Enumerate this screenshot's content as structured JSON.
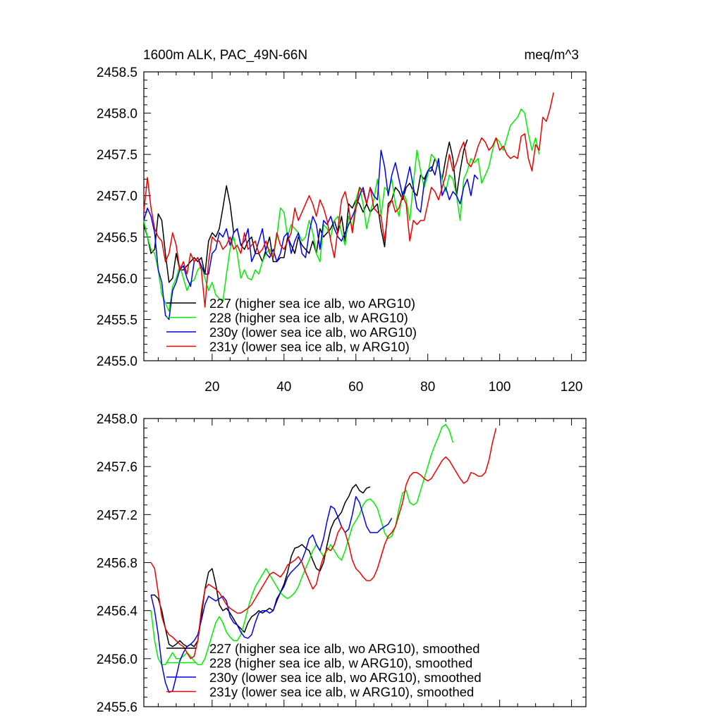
{
  "chart_data": [
    {
      "type": "line",
      "title": "1600m ALK, PAC_49N-66N",
      "units_label": "meq/m^3",
      "xlabel": "",
      "ylabel": "",
      "xlim": [
        1,
        124
      ],
      "ylim": [
        2455.0,
        2458.5
      ],
      "xticks": [
        20,
        40,
        60,
        80,
        100,
        120
      ],
      "xtick_labels": [
        "20",
        "40",
        "60",
        "80",
        "100",
        "120"
      ],
      "yticks": [
        2455.0,
        2455.5,
        2456.0,
        2456.5,
        2457.0,
        2457.5,
        2458.0,
        2458.5
      ],
      "ytick_labels": [
        "2455.0",
        "2455.5",
        "2456.0",
        "2456.5",
        "2457.0",
        "2457.5",
        "2458.0",
        "2458.5"
      ],
      "legend_position": "bottom-left",
      "series": [
        {
          "name": "227 (higher sea ice alb, wo ARG10)",
          "color": "#000000",
          "x_start": 1,
          "values": [
            2456.65,
            2456.5,
            2456.3,
            2456.35,
            2456.78,
            2456.7,
            2456.3,
            2455.95,
            2456.0,
            2456.3,
            2456.1,
            2456.1,
            2456.15,
            2456.2,
            2456.25,
            2456.2,
            2456.25,
            2456.05,
            2456.45,
            2456.55,
            2456.5,
            2456.6,
            2456.85,
            2457.12,
            2456.9,
            2456.55,
            2456.6,
            2456.4,
            2456.35,
            2456.45,
            2456.5,
            2456.3,
            2456.3,
            2456.2,
            2456.35,
            2456.5,
            2456.2,
            2456.2,
            2456.25,
            2456.25,
            2456.5,
            2456.4,
            2456.3,
            2456.5,
            2456.4,
            2456.35,
            2456.3,
            2456.45,
            2456.3,
            2456.6,
            2456.5,
            2456.55,
            2456.6,
            2456.7,
            2456.55,
            2456.75,
            2456.45,
            2456.9,
            2456.85,
            2456.95,
            2456.9,
            2456.8,
            2456.9,
            2456.8,
            2456.85,
            2456.9,
            2456.6,
            2456.38,
            2456.9,
            2456.95,
            2457.1,
            2457.05,
            2456.95,
            2457.1,
            2457.15,
            2457.05,
            2457.0,
            2457.25,
            2457.2,
            2457.3,
            2457.3,
            2457.45,
            2457.35,
            2457.2,
            2457.45,
            2457.65,
            2457.45,
            2457.0,
            2457.3,
            2457.55,
            2457.68
          ]
        },
        {
          "name": "228 (higher sea ice alb, w ARG10)",
          "color": "#00ee00",
          "x_start": 1,
          "values": [
            2456.7,
            2456.5,
            2456.35,
            2456.3,
            2456.1,
            2455.8,
            2455.7,
            2455.6,
            2455.9,
            2456.0,
            2456.15,
            2456.0,
            2455.85,
            2455.95,
            2455.98,
            2456.1,
            2456.15,
            2456.0,
            2455.85,
            2455.95,
            2455.8,
            2455.75,
            2455.72,
            2456.05,
            2456.35,
            2456.5,
            2456.3,
            2456.0,
            2456.1,
            2456.0,
            2455.98,
            2456.1,
            2456.05,
            2456.2,
            2456.3,
            2456.35,
            2456.25,
            2456.5,
            2456.85,
            2456.8,
            2456.5,
            2456.65,
            2456.6,
            2456.55,
            2456.45,
            2456.5,
            2456.7,
            2456.55,
            2456.3,
            2456.2,
            2456.65,
            2456.6,
            2456.5,
            2456.7,
            2456.75,
            2456.55,
            2456.4,
            2456.75,
            2456.6,
            2456.95,
            2457.1,
            2456.9,
            2456.6,
            2456.8,
            2456.95,
            2457.2,
            2456.75,
            2457.1,
            2457.05,
            2457.2,
            2456.9,
            2456.75,
            2457.05,
            2456.95,
            2456.7,
            2457.15,
            2457.55,
            2457.3,
            2457.1,
            2457.25,
            2457.5,
            2457.45,
            2457.35,
            2457.2,
            2457.05,
            2457.25,
            2457.2,
            2457.0,
            2456.7,
            2457.2,
            2457.3,
            2457.45,
            2457.4,
            2457.45,
            2457.15,
            2457.25,
            2457.35,
            2457.55,
            2457.7,
            2457.65,
            2457.55,
            2457.7,
            2457.85,
            2457.9,
            2457.95,
            2458.05,
            2458.0,
            2457.75,
            2457.55,
            2457.7,
            2457.5
          ]
        },
        {
          "name": "230y (lower sea ice alb, wo ARG10)",
          "color": "#0000ee",
          "x_start": 1,
          "values": [
            2456.7,
            2456.85,
            2456.75,
            2456.55,
            2456.1,
            2455.95,
            2455.55,
            2455.5,
            2455.85,
            2455.95,
            2456.1,
            2456.15,
            2456.0,
            2455.9,
            2456.2,
            2456.25,
            2456.15,
            2456.05,
            2456.05,
            2456.3,
            2456.35,
            2456.55,
            2456.5,
            2456.6,
            2456.4,
            2456.55,
            2456.6,
            2456.4,
            2456.45,
            2456.6,
            2456.2,
            2456.3,
            2456.45,
            2456.6,
            2456.3,
            2456.25,
            2456.35,
            2456.2,
            2456.3,
            2456.5,
            2456.55,
            2456.3,
            2456.45,
            2456.55,
            2456.3,
            2456.25,
            2456.55,
            2456.75,
            2456.65,
            2456.35,
            2456.7,
            2456.65,
            2456.75,
            2456.6,
            2456.5,
            2456.45,
            2456.55,
            2456.65,
            2456.75,
            2456.85,
            2457.0,
            2457.1,
            2456.9,
            2457.1,
            2457.0,
            2456.95,
            2457.55,
            2457.35,
            2457.0,
            2457.25,
            2457.4,
            2457.2,
            2457.0,
            2457.15,
            2457.35,
            2457.1,
            2456.85,
            2456.8,
            2457.15,
            2457.3,
            2457.35,
            2457.25,
            2457.45,
            2457.0,
            2457.1,
            2456.95,
            2457.05,
            2457.0,
            2456.9,
            2457.1,
            2457.2,
            2457.0,
            2457.25,
            2457.2
          ]
        },
        {
          "name": "231y (lower sea ice alb, w ARG10)",
          "color": "#ee0000",
          "x_start": 1,
          "values": [
            2456.8,
            2457.22,
            2456.85,
            2456.6,
            2456.5,
            2456.45,
            2456.2,
            2456.3,
            2456.55,
            2456.4,
            2456.1,
            2456.2,
            2456.05,
            2456.3,
            2456.2,
            2456.25,
            2456.1,
            2455.65,
            2456.2,
            2456.5,
            2456.45,
            2456.45,
            2456.35,
            2456.4,
            2456.5,
            2456.35,
            2456.4,
            2456.3,
            2456.55,
            2456.35,
            2456.4,
            2456.45,
            2456.3,
            2456.35,
            2456.45,
            2456.3,
            2456.25,
            2456.55,
            2456.4,
            2456.35,
            2456.45,
            2456.55,
            2456.85,
            2456.7,
            2456.8,
            2456.9,
            2457.0,
            2456.9,
            2456.75,
            2456.95,
            2456.85,
            2456.7,
            2456.45,
            2456.25,
            2456.6,
            2456.95,
            2457.05,
            2456.85,
            2456.55,
            2456.85,
            2457.1,
            2457.05,
            2456.9,
            2457.1,
            2456.85,
            2456.8,
            2456.75,
            2456.45,
            2456.85,
            2456.95,
            2456.8,
            2456.85,
            2457.0,
            2456.9,
            2456.45,
            2456.7,
            2456.65,
            2456.7,
            2456.7,
            2456.9,
            2457.1,
            2457.05,
            2456.95,
            2457.1,
            2457.25,
            2457.5,
            2457.3,
            2457.4,
            2457.55,
            2457.65,
            2457.4,
            2457.35,
            2457.45,
            2457.6,
            2457.7,
            2457.65,
            2457.55,
            2457.6,
            2457.7,
            2457.55,
            2457.6,
            2457.5,
            2457.45,
            2457.48,
            2457.45,
            2457.72,
            2457.75,
            2457.45,
            2457.3,
            2457.62,
            2457.55,
            2457.95,
            2457.9,
            2458.05,
            2458.25
          ]
        }
      ]
    },
    {
      "type": "line",
      "title": "",
      "xlabel": "",
      "ylabel": "",
      "xlim": [
        1,
        124
      ],
      "ylim": [
        2455.6,
        2458.0
      ],
      "xticks": [
        20,
        40,
        60,
        80,
        100,
        120
      ],
      "xtick_labels": [],
      "yticks": [
        2455.6,
        2456.0,
        2456.4,
        2456.8,
        2457.2,
        2457.6,
        2458.0
      ],
      "ytick_labels": [
        "2455.6",
        "2456.0",
        "2456.4",
        "2456.8",
        "2457.2",
        "2457.6",
        "2458.0"
      ],
      "legend_position": "bottom-left",
      "series": [
        {
          "name": "227 (higher sea ice alb, wo ARG10), smoothed",
          "color": "#000000",
          "x_start": 3,
          "values": [
            2456.53,
            2456.53,
            2456.5,
            2456.4,
            2456.25,
            2456.12,
            2456.1,
            2456.12,
            2456.15,
            2456.12,
            2456.1,
            2456.12,
            2456.1,
            2456.15,
            2456.35,
            2456.58,
            2456.72,
            2456.75,
            2456.62,
            2456.45,
            2456.4,
            2456.42,
            2456.38,
            2456.33,
            2456.28,
            2456.25,
            2456.22,
            2456.3,
            2456.35,
            2456.37,
            2456.4,
            2456.38,
            2456.4,
            2456.42,
            2456.4,
            2456.48,
            2456.55,
            2456.62,
            2456.72,
            2456.85,
            2456.92,
            2456.93,
            2456.95,
            2456.92,
            2456.9,
            2456.82,
            2456.75,
            2456.73,
            2456.8,
            2456.95,
            2457.08,
            2457.15,
            2457.18,
            2457.22,
            2457.3,
            2457.35,
            2457.42,
            2457.45,
            2457.4,
            2457.38,
            2457.42,
            2457.43
          ]
        },
        {
          "name": "228 (higher sea ice alb, w ARG10), smoothed",
          "color": "#00ee00",
          "x_start": 3,
          "values": [
            2456.4,
            2456.15,
            2456.0,
            2455.95,
            2455.95,
            2456.0,
            2456.05,
            2456.0,
            2456.0,
            2456.02,
            2456.05,
            2456.02,
            2455.98,
            2455.95,
            2455.95,
            2456.0,
            2456.1,
            2456.2,
            2456.3,
            2456.35,
            2456.3,
            2456.22,
            2456.18,
            2456.15,
            2456.15,
            2456.2,
            2456.3,
            2456.42,
            2456.52,
            2456.6,
            2456.65,
            2456.7,
            2456.75,
            2456.7,
            2456.65,
            2456.6,
            2456.55,
            2456.52,
            2456.5,
            2456.52,
            2456.55,
            2456.6,
            2456.68,
            2456.75,
            2456.82,
            2456.9,
            2456.95,
            2456.9,
            2456.85,
            2456.9,
            2456.95,
            2456.9,
            2456.85,
            2456.82,
            2456.9,
            2457.0,
            2457.1,
            2457.15,
            2457.2,
            2457.28,
            2457.32,
            2457.33,
            2457.3,
            2457.25,
            2457.15,
            2457.05,
            2457.0,
            2457.02,
            2457.1,
            2457.25,
            2457.38,
            2457.4,
            2457.3,
            2457.28,
            2457.3,
            2457.4,
            2457.5,
            2457.6,
            2457.7,
            2457.78,
            2457.85,
            2457.93,
            2457.95,
            2457.9,
            2457.8
          ]
        },
        {
          "name": "230y (lower sea ice alb, wo ARG10), smoothed",
          "color": "#0000ee",
          "x_start": 3,
          "values": [
            2456.53,
            2456.4,
            2456.2,
            2455.95,
            2455.8,
            2455.72,
            2455.73,
            2455.85,
            2455.98,
            2456.05,
            2456.1,
            2456.12,
            2456.15,
            2456.2,
            2456.32,
            2456.45,
            2456.52,
            2456.5,
            2456.48,
            2456.5,
            2456.52,
            2456.48,
            2456.35,
            2456.3,
            2456.28,
            2456.22,
            2456.18,
            2456.17,
            2456.2,
            2456.3,
            2456.38,
            2456.4,
            2456.4,
            2456.38,
            2456.4,
            2456.5,
            2456.55,
            2456.6,
            2456.68,
            2456.72,
            2456.75,
            2456.78,
            2456.82,
            2456.9,
            2457.0,
            2457.03,
            2456.95,
            2456.9,
            2457.0,
            2457.15,
            2457.27,
            2457.25,
            2457.18,
            2457.1,
            2457.05,
            2457.08,
            2457.2,
            2457.35,
            2457.3,
            2457.2,
            2457.1,
            2457.05,
            2457.05,
            2457.05,
            2457.08,
            2457.1,
            2457.12,
            2457.17
          ]
        },
        {
          "name": "231y (lower sea ice alb, w ARG10), smoothed",
          "color": "#ee0000",
          "x_start": 3,
          "values": [
            2456.8,
            2456.75,
            2456.55,
            2456.35,
            2456.25,
            2456.2,
            2456.18,
            2456.15,
            2456.12,
            2456.1,
            2456.05,
            2456.0,
            2456.02,
            2456.15,
            2456.4,
            2456.58,
            2456.62,
            2456.6,
            2456.58,
            2456.55,
            2456.5,
            2456.45,
            2456.42,
            2456.4,
            2456.38,
            2456.38,
            2456.4,
            2456.42,
            2456.45,
            2456.5,
            2456.55,
            2456.6,
            2456.65,
            2456.7,
            2456.72,
            2456.7,
            2456.68,
            2456.72,
            2456.78,
            2456.8,
            2456.82,
            2456.85,
            2456.8,
            2456.72,
            2456.65,
            2456.58,
            2456.62,
            2456.75,
            2456.85,
            2456.92,
            2456.9,
            2456.95,
            2457.05,
            2457.1,
            2457.05,
            2456.95,
            2456.82,
            2456.75,
            2456.72,
            2456.68,
            2456.65,
            2456.65,
            2456.68,
            2456.75,
            2456.85,
            2456.95,
            2457.02,
            2457.05,
            2457.1,
            2457.2,
            2457.3,
            2457.45,
            2457.52,
            2457.55,
            2457.55,
            2457.53,
            2457.5,
            2457.48,
            2457.5,
            2457.55,
            2457.6,
            2457.65,
            2457.68,
            2457.65,
            2457.6,
            2457.55,
            2457.5,
            2457.46,
            2457.48,
            2457.55,
            2457.54,
            2457.52,
            2457.52,
            2457.55,
            2457.65,
            2457.8,
            2457.92
          ]
        }
      ]
    }
  ]
}
